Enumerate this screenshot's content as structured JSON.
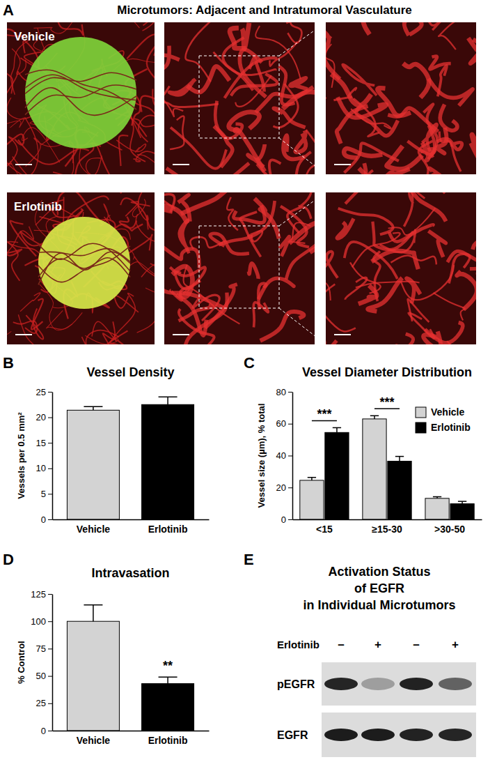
{
  "figure": {
    "panel_a": {
      "label": "A",
      "title": "Microtumors: Adjacent and Intratumoral Vasculature",
      "rows": [
        "Vehicle",
        "Erlotinib"
      ]
    },
    "panel_e": {
      "label": "E",
      "title": [
        "Activation Status",
        "of EGFR",
        "in Individual Microtumors"
      ],
      "treatment": "Erlotinib",
      "lanes": [
        "–",
        "+",
        "–",
        "+"
      ],
      "bands": [
        "pEGFR",
        "EGFR"
      ]
    }
  },
  "chart_data": [
    {
      "label": "B",
      "type": "bar",
      "title": "Vessel Density",
      "categories": [
        "Vehicle",
        "Erlotinib"
      ],
      "values": [
        21.4,
        22.5
      ],
      "errors": [
        0.7,
        1.5
      ],
      "colors": [
        "#d3d3d3",
        "#000000"
      ],
      "ylabel": "Vessels per 0.5 mm²",
      "ylim": [
        0,
        25
      ],
      "yticks": [
        0,
        5,
        10,
        15,
        20,
        25
      ]
    },
    {
      "label": "C",
      "type": "bar",
      "title": "Vessel Diameter Distribution",
      "categories": [
        "<15",
        "≥15-30",
        ">30-50"
      ],
      "series": [
        {
          "name": "Vehicle",
          "color": "#d3d3d3",
          "values": [
            24.5,
            63,
            13.2
          ],
          "errors": [
            1.8,
            2,
            1
          ]
        },
        {
          "name": "Erlotinib",
          "color": "#000000",
          "values": [
            54.5,
            36.5,
            9.8
          ],
          "errors": [
            3,
            3,
            1.5
          ]
        }
      ],
      "ylabel": "Vessel size (µm), % total",
      "ylim": [
        0,
        80
      ],
      "yticks": [
        0,
        20,
        40,
        60,
        80
      ],
      "legend": "top-right",
      "annotations": [
        {
          "text": "***",
          "category": "<15"
        },
        {
          "text": "***",
          "category": "≥15-30"
        }
      ]
    },
    {
      "label": "D",
      "type": "bar",
      "title": "Intravasation",
      "categories": [
        "Vehicle",
        "Erlotinib"
      ],
      "values": [
        100,
        43
      ],
      "errors": [
        15,
        6
      ],
      "colors": [
        "#d3d3d3",
        "#000000"
      ],
      "ylabel": "% Control",
      "ylim": [
        0,
        125
      ],
      "yticks": [
        0,
        25,
        50,
        75,
        100,
        125
      ],
      "annotations": [
        {
          "text": "**",
          "category": "Erlotinib"
        }
      ]
    }
  ]
}
